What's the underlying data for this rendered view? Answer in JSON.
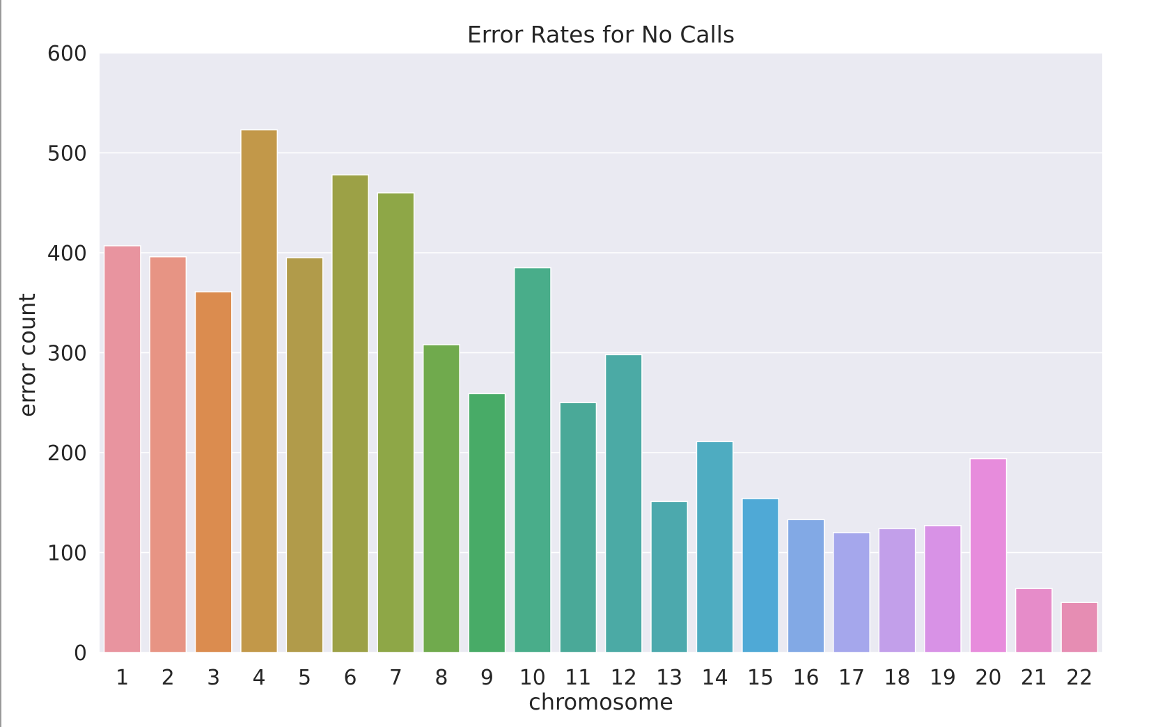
{
  "chart_data": {
    "type": "bar",
    "title": "Error Rates for No Calls",
    "xlabel": "chromosome",
    "ylabel": "error count",
    "categories": [
      "1",
      "2",
      "3",
      "4",
      "5",
      "6",
      "7",
      "8",
      "9",
      "10",
      "11",
      "12",
      "13",
      "14",
      "15",
      "16",
      "17",
      "18",
      "19",
      "20",
      "21",
      "22"
    ],
    "values": [
      407,
      396,
      361,
      523,
      395,
      478,
      460,
      308,
      259,
      385,
      250,
      298,
      151,
      211,
      154,
      133,
      120,
      124,
      127,
      194,
      64,
      50
    ],
    "ylim": [
      0,
      600
    ],
    "yticks": [
      0,
      100,
      200,
      300,
      400,
      500,
      600
    ],
    "grid": "horizontal",
    "legend": "none",
    "colors": {
      "background": "#EAEAF2",
      "grid": "#FFFFFF",
      "bars": [
        "#E8949F",
        "#E79484",
        "#DB8C4F",
        "#C29849",
        "#B19B4A",
        "#9CA146",
        "#8EA747",
        "#70AA4D",
        "#48AB67",
        "#49AD8A",
        "#4AA998",
        "#4BAAA5",
        "#4CA9AD",
        "#4EACC1",
        "#4FA9D6",
        "#82A9E5",
        "#A5A7EC",
        "#C29FEA",
        "#D892E6",
        "#E78CDC",
        "#E68CC9",
        "#E68DB3"
      ]
    }
  }
}
